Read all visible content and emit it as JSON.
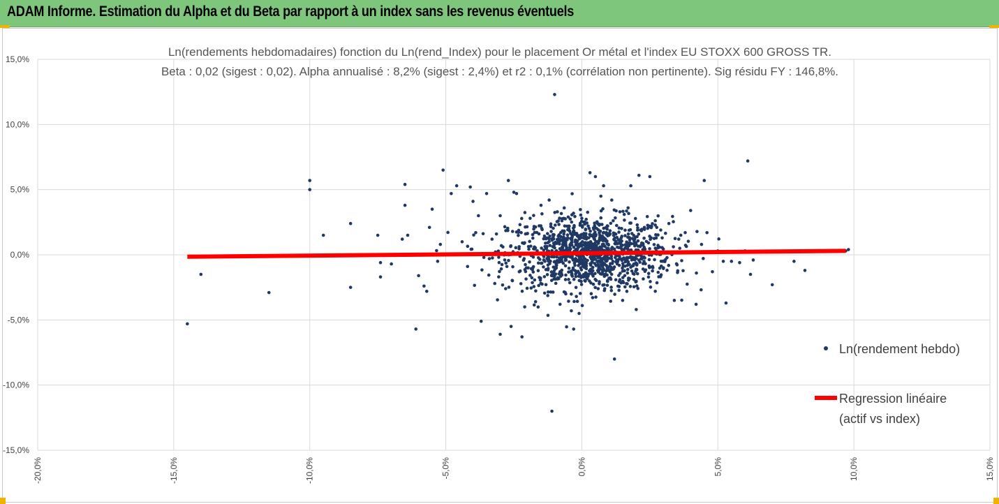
{
  "header": {
    "title": "ADAM Informe. Estimation du Alpha et du Beta par rapport à un index sans les revenus éventuels"
  },
  "colors": {
    "header_bg": "#7dc67b",
    "points": "#1f3864",
    "regression": "#ff0000",
    "grid": "#d9d9d9",
    "corner_marker": "#f0b400"
  },
  "chart_data": {
    "type": "scatter",
    "title_line1": "Ln(rendements hebdomadaires) fonction du Ln(rend_Index) pour le placement Or métal et l'index EU STOXX 600 GROSS TR.",
    "title_line2": "Beta : 0,02 (sigest : 0,02). Alpha annualisé : 8,2% (sigest : 2,4%) et r2 : 0,1% (corrélation non pertinente). Sig résidu FY : 146,8%.",
    "xlim": [
      -20,
      15
    ],
    "ylim": [
      -15,
      15
    ],
    "x_ticks": [
      -20,
      -15,
      -10,
      -5,
      0,
      5,
      10,
      15
    ],
    "y_ticks": [
      -15,
      -10,
      -5,
      0,
      5,
      10,
      15
    ],
    "x_tick_labels": [
      "-20,0%",
      "-15,0%",
      "-10,0%",
      "-5,0%",
      "0,0%",
      "5,0%",
      "10,0%",
      "15,0%"
    ],
    "y_tick_labels": [
      "-15,0%",
      "-10,0%",
      "-5,0%",
      "0,0%",
      "5,0%",
      "10,0%",
      "15,0%"
    ],
    "grid": true,
    "legend_position": "right",
    "series": [
      {
        "name": "Ln(rendement hebdo)",
        "kind": "scatter",
        "points": [
          [
            -14.5,
            -5.3
          ],
          [
            -14.0,
            -1.5
          ],
          [
            -11.5,
            -2.9
          ],
          [
            -10.0,
            5.7
          ],
          [
            -10.0,
            5.0
          ],
          [
            -9.5,
            1.5
          ],
          [
            -8.5,
            2.4
          ],
          [
            -8.5,
            -2.5
          ],
          [
            -7.5,
            1.5
          ],
          [
            -7.4,
            -0.6
          ],
          [
            -7.4,
            -1.7
          ],
          [
            -7.0,
            -0.7
          ],
          [
            -6.5,
            5.4
          ],
          [
            -6.5,
            3.8
          ],
          [
            -6.6,
            1.2
          ],
          [
            -6.4,
            1.5
          ],
          [
            -6.1,
            -5.7
          ],
          [
            -6.0,
            -1.6
          ],
          [
            -5.8,
            -2.4
          ],
          [
            -5.7,
            -2.8
          ],
          [
            -5.6,
            2.1
          ],
          [
            -5.5,
            3.5
          ],
          [
            -5.3,
            -0.5
          ],
          [
            -5.2,
            0.8
          ],
          [
            -5.1,
            6.5
          ],
          [
            -4.8,
            4.7
          ],
          [
            -4.6,
            5.3
          ],
          [
            -4.4,
            1.0
          ],
          [
            -4.2,
            -0.9
          ],
          [
            -4.1,
            5.2
          ],
          [
            -4.0,
            4.1
          ],
          [
            -3.9,
            1.7
          ],
          [
            -3.8,
            3.0
          ],
          [
            -3.7,
            -5.1
          ],
          [
            -3.5,
            4.7
          ],
          [
            -3.4,
            -0.3
          ],
          [
            -3.3,
            1.2
          ],
          [
            -3.2,
            -2.2
          ],
          [
            -3.0,
            -6.1
          ],
          [
            -3.0,
            3.0
          ],
          [
            -2.8,
            -2.6
          ],
          [
            -2.7,
            5.7
          ],
          [
            -2.6,
            -5.5
          ],
          [
            -2.5,
            4.8
          ],
          [
            -2.4,
            4.7
          ],
          [
            -2.3,
            -1.3
          ],
          [
            -2.2,
            -6.3
          ],
          [
            -2.1,
            -4.0
          ],
          [
            -1.9,
            2.8
          ],
          [
            -1.7,
            -3.6
          ],
          [
            -1.5,
            3.8
          ],
          [
            -1.4,
            -0.4
          ],
          [
            -1.2,
            4.2
          ],
          [
            -1.1,
            -12.0
          ],
          [
            -1.0,
            12.3
          ],
          [
            -0.9,
            3.3
          ],
          [
            -0.8,
            -3.8
          ],
          [
            -0.6,
            -1.9
          ],
          [
            -0.5,
            2.9
          ],
          [
            -0.3,
            -5.7
          ],
          [
            -0.2,
            -3.2
          ],
          [
            -0.1,
            -4.5
          ],
          [
            0.0,
            2.8
          ],
          [
            0.2,
            -1.6
          ],
          [
            0.3,
            6.3
          ],
          [
            0.5,
            6.0
          ],
          [
            0.6,
            -2.6
          ],
          [
            0.7,
            4.5
          ],
          [
            0.8,
            5.3
          ],
          [
            1.0,
            -1.8
          ],
          [
            1.1,
            4.2
          ],
          [
            1.2,
            -8.0
          ],
          [
            1.4,
            3.3
          ],
          [
            1.5,
            -3.5
          ],
          [
            1.7,
            3.6
          ],
          [
            1.8,
            5.3
          ],
          [
            2.0,
            -4.2
          ],
          [
            2.1,
            6.1
          ],
          [
            2.3,
            2.1
          ],
          [
            2.5,
            6.0
          ],
          [
            2.7,
            -2.8
          ],
          [
            2.9,
            1.9
          ],
          [
            3.0,
            -1.0
          ],
          [
            3.2,
            2.4
          ],
          [
            3.4,
            -3.5
          ],
          [
            3.6,
            0.5
          ],
          [
            3.8,
            1.7
          ],
          [
            4.0,
            3.4
          ],
          [
            4.2,
            -3.8
          ],
          [
            4.4,
            0.8
          ],
          [
            4.5,
            5.7
          ],
          [
            4.6,
            1.7
          ],
          [
            4.8,
            -1.3
          ],
          [
            5.0,
            0.3
          ],
          [
            5.2,
            -0.5
          ],
          [
            5.3,
            -3.7
          ],
          [
            5.5,
            -0.5
          ],
          [
            5.8,
            -0.6
          ],
          [
            6.0,
            0.3
          ],
          [
            6.2,
            -1.5
          ],
          [
            6.1,
            7.2
          ],
          [
            6.3,
            -0.4
          ],
          [
            7.0,
            -2.3
          ],
          [
            7.8,
            -0.5
          ],
          [
            8.2,
            -1.2
          ],
          [
            9.7,
            0.3
          ],
          [
            9.8,
            0.4
          ],
          [
            -1.3,
            0.5
          ],
          [
            -0.4,
            1.2
          ],
          [
            0.4,
            0.3
          ],
          [
            1.6,
            -0.4
          ],
          [
            2.2,
            0.9
          ],
          [
            -2.9,
            0.6
          ],
          [
            -3.6,
            -0.2
          ],
          [
            -1.8,
            -1.0
          ],
          [
            0.9,
            1.7
          ],
          [
            1.9,
            0.2
          ],
          [
            2.6,
            -0.9
          ],
          [
            -0.7,
            0.8
          ],
          [
            0.1,
            -0.6
          ]
        ]
      },
      {
        "name": "Regression linéaire (actif vs index)",
        "kind": "line",
        "x": [
          -14.5,
          9.7
        ],
        "y": [
          -0.15,
          0.3
        ]
      }
    ],
    "legend": [
      {
        "label": "Ln(rendement hebdo)"
      },
      {
        "label_line1": "Regression linéaire",
        "label_line2": "(actif vs index)"
      }
    ]
  }
}
